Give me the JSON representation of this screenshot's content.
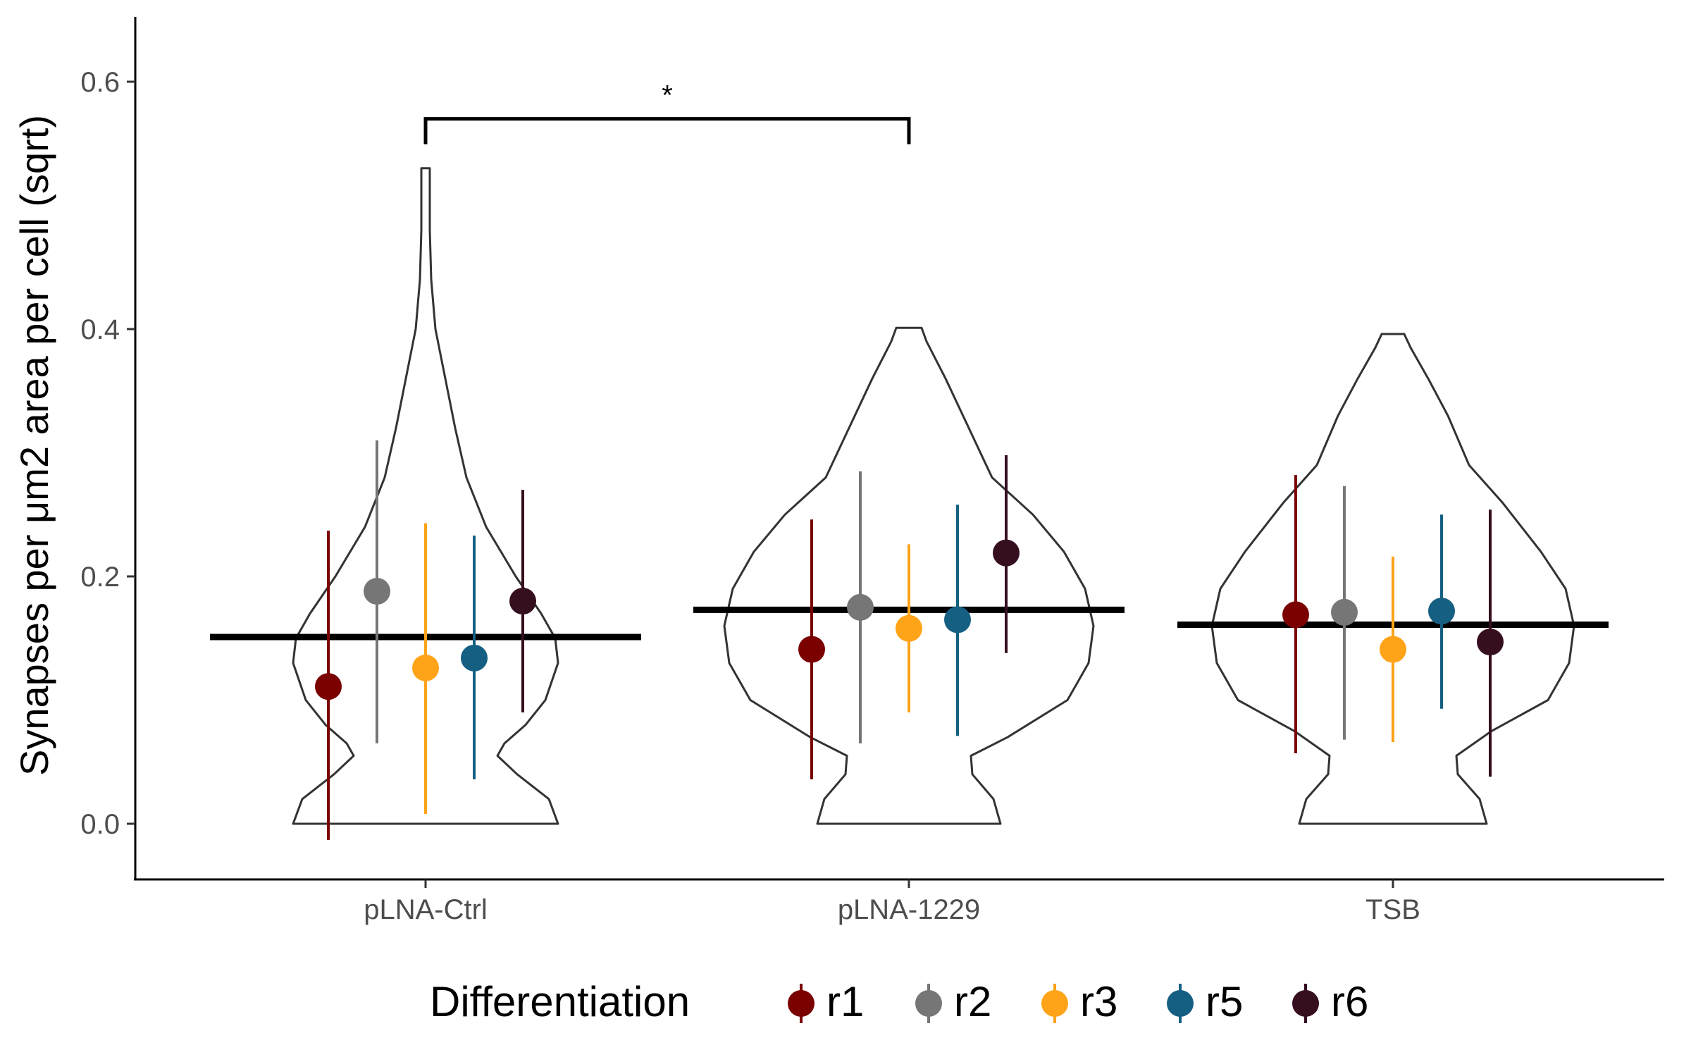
{
  "chart_data": {
    "type": "violin",
    "title": "",
    "xlabel": "",
    "ylabel": "Synapses per μm2 area per cell (sqrt)",
    "categories": [
      "pLNA-Ctrl",
      "pLNA-1229",
      "TSB"
    ],
    "ylim": [
      -0.045,
      0.65
    ],
    "y_ticks": [
      "0.0",
      "0.2",
      "0.4",
      "0.6"
    ],
    "y_tick_values": [
      0.0,
      0.2,
      0.4,
      0.6
    ],
    "grid": false,
    "group_means": [
      0.151,
      0.173,
      0.161
    ],
    "violin_range": [
      [
        0.0,
        0.53
      ],
      [
        0.0,
        0.401
      ],
      [
        0.0,
        0.396
      ]
    ],
    "legend": {
      "title": "Differentiation",
      "position": "bottom",
      "entries": [
        "r1",
        "r2",
        "r3",
        "r5",
        "r6"
      ]
    },
    "series": [
      {
        "name": "r1",
        "color": "#7b0000",
        "mean": [
          0.111,
          0.141,
          0.169
        ],
        "lower": [
          -0.013,
          0.036,
          0.057
        ],
        "upper": [
          0.237,
          0.246,
          0.282
        ]
      },
      {
        "name": "r2",
        "color": "#767676",
        "mean": [
          0.188,
          0.175,
          0.171
        ],
        "lower": [
          0.065,
          0.065,
          0.068
        ],
        "upper": [
          0.31,
          0.285,
          0.273
        ]
      },
      {
        "name": "r3",
        "color": "#ffa319",
        "mean": [
          0.126,
          0.158,
          0.141
        ],
        "lower": [
          0.008,
          0.09,
          0.066
        ],
        "upper": [
          0.243,
          0.226,
          0.216
        ]
      },
      {
        "name": "r5",
        "color": "#155f83",
        "mean": [
          0.134,
          0.165,
          0.172
        ],
        "lower": [
          0.036,
          0.071,
          0.093
        ],
        "upper": [
          0.233,
          0.258,
          0.25
        ]
      },
      {
        "name": "r6",
        "color": "#350e20",
        "mean": [
          0.18,
          0.219,
          0.147
        ],
        "lower": [
          0.09,
          0.138,
          0.038
        ],
        "upper": [
          0.27,
          0.298,
          0.254
        ]
      }
    ],
    "annotations": [
      {
        "text": "*",
        "from": "pLNA-Ctrl",
        "to": "pLNA-1229",
        "y": 0.57
      }
    ]
  }
}
